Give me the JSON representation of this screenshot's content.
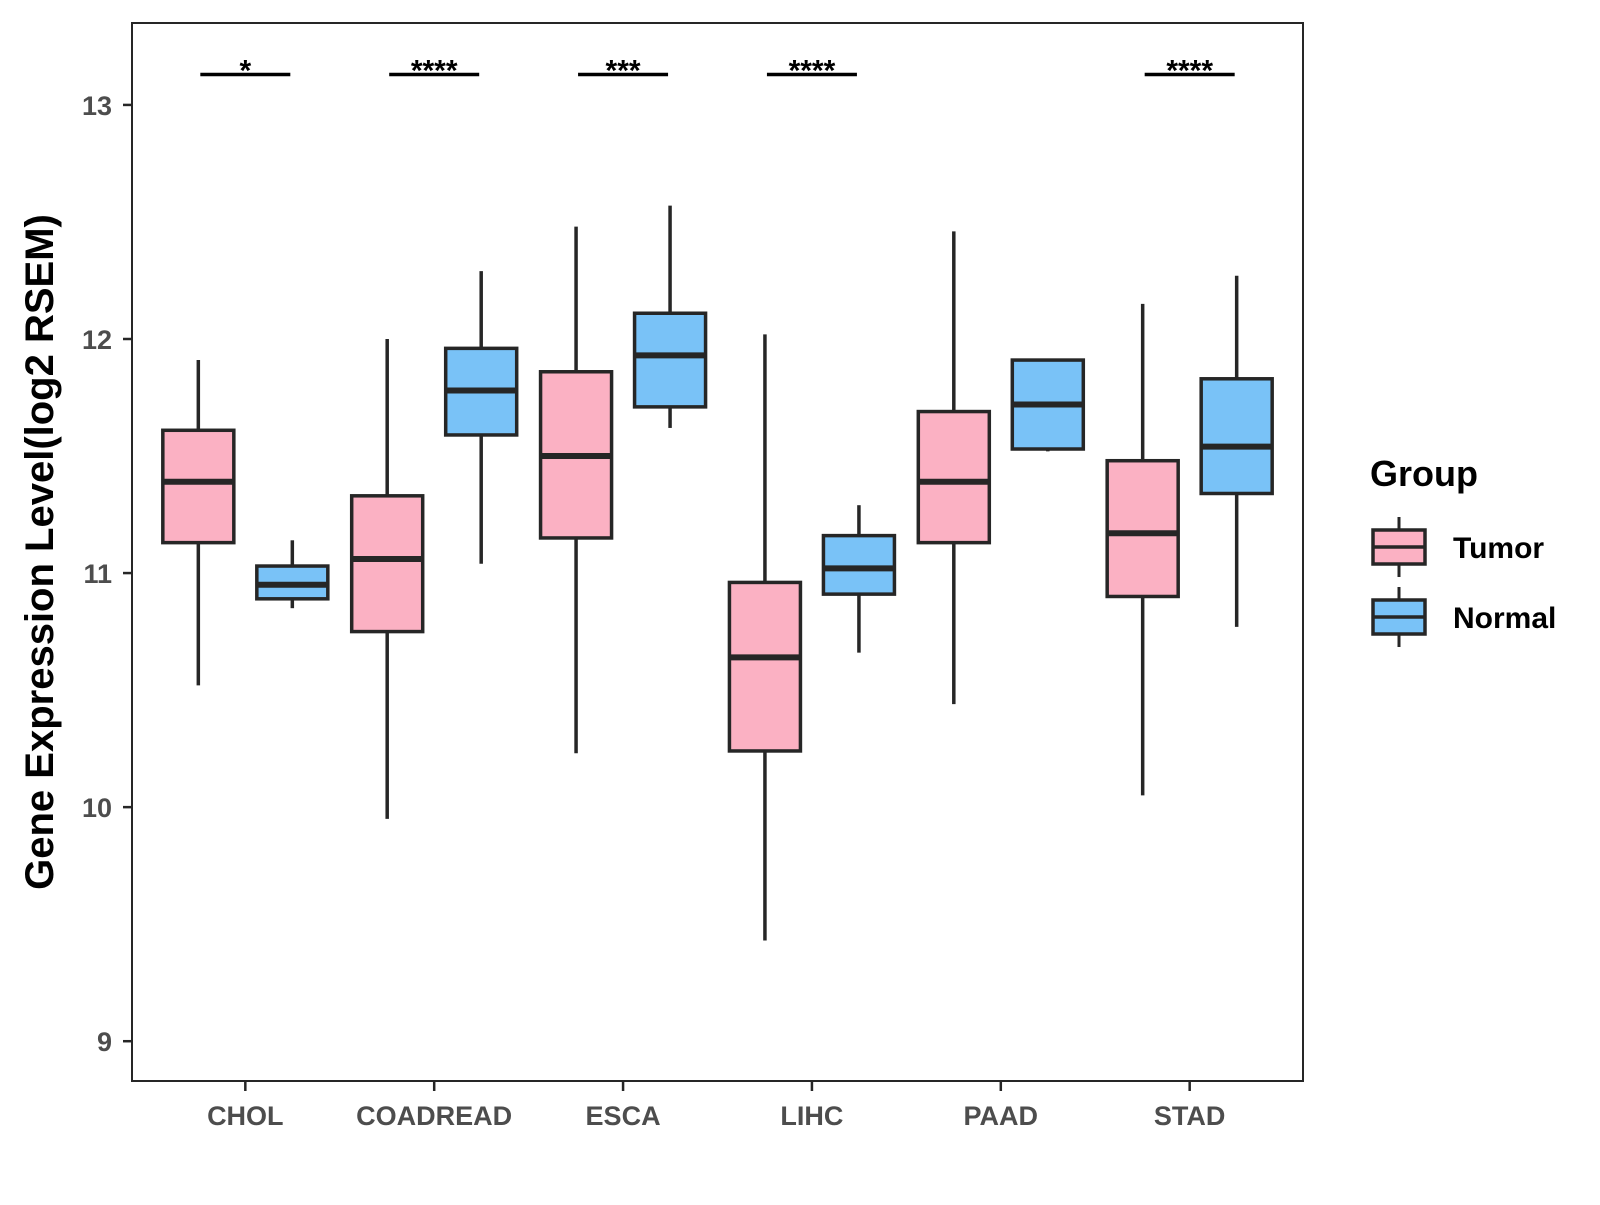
{
  "chart_data": {
    "type": "box",
    "ylabel": "Gene Expression Level(log2 RSEM)",
    "xlabel": "",
    "ylim": [
      8.83,
      13.35
    ],
    "yticks": [
      9,
      10,
      11,
      12,
      13
    ],
    "categories": [
      "CHOL",
      "COADREAD",
      "ESCA",
      "LIHC",
      "PAAD",
      "STAD"
    ],
    "legend": {
      "title": "Group",
      "position": "right"
    },
    "grid": false,
    "series": [
      {
        "name": "Tumor",
        "color": "#FBB1C3",
        "boxes": [
          {
            "category": "CHOL",
            "whisker_low": 10.52,
            "q1": 11.13,
            "median": 11.39,
            "q3": 11.61,
            "whisker_high": 11.91
          },
          {
            "category": "COADREAD",
            "whisker_low": 9.95,
            "q1": 10.75,
            "median": 11.06,
            "q3": 11.33,
            "whisker_high": 12.0
          },
          {
            "category": "ESCA",
            "whisker_low": 10.23,
            "q1": 11.15,
            "median": 11.5,
            "q3": 11.86,
            "whisker_high": 12.48
          },
          {
            "category": "LIHC",
            "whisker_low": 9.43,
            "q1": 10.24,
            "median": 10.64,
            "q3": 10.96,
            "whisker_high": 12.02
          },
          {
            "category": "PAAD",
            "whisker_low": 10.44,
            "q1": 11.13,
            "median": 11.39,
            "q3": 11.69,
            "whisker_high": 12.46
          },
          {
            "category": "STAD",
            "whisker_low": 10.05,
            "q1": 10.9,
            "median": 11.17,
            "q3": 11.48,
            "whisker_high": 12.15
          }
        ]
      },
      {
        "name": "Normal",
        "color": "#79C2F7",
        "boxes": [
          {
            "category": "CHOL",
            "whisker_low": 10.85,
            "q1": 10.89,
            "median": 10.95,
            "q3": 11.03,
            "whisker_high": 11.14
          },
          {
            "category": "COADREAD",
            "whisker_low": 11.04,
            "q1": 11.59,
            "median": 11.78,
            "q3": 11.96,
            "whisker_high": 12.29
          },
          {
            "category": "ESCA",
            "whisker_low": 11.62,
            "q1": 11.71,
            "median": 11.93,
            "q3": 12.11,
            "whisker_high": 12.57
          },
          {
            "category": "LIHC",
            "whisker_low": 10.66,
            "q1": 10.91,
            "median": 11.02,
            "q3": 11.16,
            "whisker_high": 11.29
          },
          {
            "category": "PAAD",
            "whisker_low": 11.52,
            "q1": 11.53,
            "median": 11.72,
            "q3": 11.91,
            "whisker_high": 11.91
          },
          {
            "category": "STAD",
            "whisker_low": 10.77,
            "q1": 11.34,
            "median": 11.54,
            "q3": 11.83,
            "whisker_high": 12.27
          }
        ]
      }
    ],
    "significance": [
      {
        "category": "CHOL",
        "label": "*"
      },
      {
        "category": "COADREAD",
        "label": "****"
      },
      {
        "category": "ESCA",
        "label": "***"
      },
      {
        "category": "LIHC",
        "label": "****"
      },
      {
        "category": "PAAD",
        "label": ""
      },
      {
        "category": "STAD",
        "label": "****"
      }
    ],
    "significance_y": 13.13
  }
}
